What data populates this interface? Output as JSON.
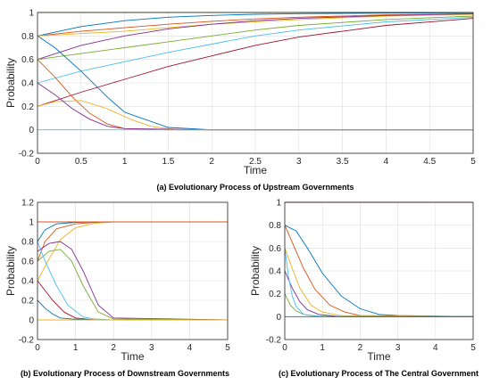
{
  "figure": {
    "panels": [
      {
        "id": "a",
        "caption": "(a) Evolutionary Process of Upstream Governments"
      },
      {
        "id": "b",
        "caption": "(b) Evolutionary Process of Downstream Governments"
      },
      {
        "id": "c",
        "caption": "(c) Evolutionary Process of The Central Government"
      }
    ]
  },
  "chart_data": [
    {
      "type": "line",
      "title": "",
      "xlabel": "Time",
      "ylabel": "Probability",
      "xlim": [
        0,
        5
      ],
      "ylim": [
        -0.2,
        1
      ],
      "xticks": [
        "0",
        "0.5",
        "1",
        "1.5",
        "2",
        "2.5",
        "3",
        "3.5",
        "4",
        "4.5",
        "5"
      ],
      "xtick_values": [
        0,
        0.5,
        1,
        1.5,
        2,
        2.5,
        3,
        3.5,
        4,
        4.5,
        5
      ],
      "yticks": [
        "-0.2",
        "0",
        "0.2",
        "0.4",
        "0.6",
        "0.8",
        "1"
      ],
      "ytick_values": [
        -0.2,
        0,
        0.2,
        0.4,
        0.6,
        0.8,
        1
      ],
      "grid": true,
      "palette": [
        "#0072BD",
        "#D95319",
        "#EDB120",
        "#7E2F8E",
        "#77AC30",
        "#4DBEEE",
        "#A2142F"
      ],
      "series": [
        {
          "x": [
            0,
            0.5,
            1,
            1.5,
            2,
            2.5,
            3,
            4,
            5
          ],
          "values": [
            0.8,
            0.88,
            0.93,
            0.96,
            0.975,
            0.985,
            0.99,
            0.995,
            0.998
          ]
        },
        {
          "x": [
            0,
            0.5,
            1,
            1.5,
            2,
            2.5,
            3,
            4,
            5
          ],
          "values": [
            0.8,
            0.84,
            0.87,
            0.9,
            0.925,
            0.945,
            0.96,
            0.98,
            0.99
          ]
        },
        {
          "x": [
            0,
            0.5,
            1,
            1.5,
            2,
            2.5,
            3,
            4,
            5
          ],
          "values": [
            0.8,
            0.82,
            0.84,
            0.87,
            0.9,
            0.92,
            0.94,
            0.97,
            0.985
          ]
        },
        {
          "x": [
            0,
            0.5,
            1,
            1.5,
            2,
            2.5,
            3,
            4,
            5
          ],
          "values": [
            0.6,
            0.72,
            0.8,
            0.86,
            0.9,
            0.93,
            0.95,
            0.975,
            0.988
          ]
        },
        {
          "x": [
            0,
            0.5,
            1,
            1.5,
            2,
            2.5,
            3,
            4,
            5
          ],
          "values": [
            0.6,
            0.65,
            0.7,
            0.75,
            0.8,
            0.85,
            0.89,
            0.94,
            0.97
          ]
        },
        {
          "x": [
            0,
            0.5,
            1,
            1.5,
            2,
            2.5,
            3,
            4,
            5
          ],
          "values": [
            0.4,
            0.5,
            0.58,
            0.66,
            0.73,
            0.8,
            0.85,
            0.92,
            0.96
          ]
        },
        {
          "x": [
            0,
            0.5,
            1,
            1.5,
            2,
            2.5,
            3,
            4,
            5
          ],
          "values": [
            0.2,
            0.32,
            0.43,
            0.54,
            0.63,
            0.72,
            0.79,
            0.89,
            0.95
          ]
        },
        {
          "x": [
            0,
            0.2,
            0.5,
            0.8,
            1,
            1.5,
            2,
            3,
            5
          ],
          "values": [
            0.8,
            0.7,
            0.5,
            0.28,
            0.15,
            0.02,
            0,
            0,
            0
          ]
        },
        {
          "x": [
            0,
            0.2,
            0.4,
            0.6,
            0.8,
            1,
            1.5,
            3,
            5
          ],
          "values": [
            0.6,
            0.45,
            0.28,
            0.14,
            0.05,
            0.01,
            0,
            0,
            0
          ]
        },
        {
          "x": [
            0,
            0.2,
            0.5,
            0.8,
            1.1,
            1.3,
            1.6,
            3,
            5
          ],
          "values": [
            0.2,
            0.24,
            0.25,
            0.18,
            0.08,
            0.03,
            0,
            0,
            0
          ]
        },
        {
          "x": [
            0,
            0.2,
            0.4,
            0.6,
            0.8,
            1,
            2,
            5
          ],
          "values": [
            0.4,
            0.3,
            0.18,
            0.09,
            0.03,
            0.01,
            0,
            0
          ]
        },
        {
          "x": [
            0,
            5
          ],
          "values": [
            1,
            1
          ]
        },
        {
          "x": [
            0,
            5
          ],
          "values": [
            0,
            0
          ]
        }
      ]
    },
    {
      "type": "line",
      "title": "",
      "xlabel": "Time",
      "ylabel": "Probability",
      "xlim": [
        0,
        5
      ],
      "ylim": [
        -0.2,
        1.2
      ],
      "xticks": [
        "0",
        "1",
        "2",
        "3",
        "4",
        "5"
      ],
      "xtick_values": [
        0,
        1,
        2,
        3,
        4,
        5
      ],
      "yticks": [
        "-0.2",
        "0",
        "0.2",
        "0.4",
        "0.6",
        "0.8",
        "1",
        "1.2"
      ],
      "ytick_values": [
        -0.2,
        0,
        0.2,
        0.4,
        0.6,
        0.8,
        1,
        1.2
      ],
      "grid": true,
      "palette": [
        "#0072BD",
        "#D95319",
        "#EDB120",
        "#7E2F8E",
        "#77AC30",
        "#4DBEEE",
        "#A2142F"
      ],
      "series": [
        {
          "x": [
            0,
            0.2,
            0.5,
            1,
            1.5,
            2,
            5
          ],
          "values": [
            0.8,
            0.92,
            0.98,
            0.995,
            1,
            1,
            1
          ]
        },
        {
          "x": [
            0,
            0.2,
            0.5,
            1,
            1.5,
            2,
            5
          ],
          "values": [
            0.6,
            0.8,
            0.93,
            0.98,
            0.995,
            1,
            1
          ]
        },
        {
          "x": [
            0,
            0.3,
            0.6,
            1,
            1.5,
            2,
            5
          ],
          "values": [
            0.4,
            0.62,
            0.82,
            0.94,
            0.985,
            1,
            1
          ]
        },
        {
          "x": [
            0,
            0.3,
            0.6,
            0.9,
            1.2,
            1.6,
            2,
            5
          ],
          "values": [
            0.7,
            0.78,
            0.8,
            0.72,
            0.5,
            0.15,
            0.02,
            0
          ]
        },
        {
          "x": [
            0,
            0.3,
            0.6,
            0.9,
            1.2,
            1.6,
            2,
            5
          ],
          "values": [
            0.6,
            0.7,
            0.72,
            0.6,
            0.35,
            0.08,
            0.01,
            0
          ]
        },
        {
          "x": [
            0,
            0.2,
            0.5,
            0.8,
            1.2,
            1.5,
            2,
            5
          ],
          "values": [
            0.8,
            0.6,
            0.35,
            0.15,
            0.03,
            0.01,
            0,
            0
          ]
        },
        {
          "x": [
            0,
            0.2,
            0.4,
            0.7,
            1,
            1.5,
            5
          ],
          "values": [
            0.4,
            0.3,
            0.2,
            0.08,
            0.02,
            0,
            0
          ]
        },
        {
          "x": [
            0,
            0.2,
            0.4,
            0.6,
            0.9,
            1.5,
            5
          ],
          "values": [
            0.2,
            0.12,
            0.06,
            0.02,
            0.01,
            0,
            0
          ]
        },
        {
          "x": [
            0,
            5
          ],
          "values": [
            1,
            1
          ]
        },
        {
          "x": [
            0,
            5
          ],
          "values": [
            0,
            0
          ]
        }
      ]
    },
    {
      "type": "line",
      "title": "",
      "xlabel": "Time",
      "ylabel": "Probability",
      "xlim": [
        0,
        5
      ],
      "ylim": [
        -0.2,
        1
      ],
      "xticks": [
        "0",
        "1",
        "2",
        "3",
        "4",
        "5"
      ],
      "xtick_values": [
        0,
        1,
        2,
        3,
        4,
        5
      ],
      "yticks": [
        "-0.2",
        "0",
        "0.2",
        "0.4",
        "0.6",
        "0.8",
        "1"
      ],
      "ytick_values": [
        -0.2,
        0,
        0.2,
        0.4,
        0.6,
        0.8,
        1
      ],
      "grid": true,
      "palette": [
        "#0072BD",
        "#D95319",
        "#EDB120",
        "#7E2F8E",
        "#77AC30",
        "#4DBEEE",
        "#A2142F"
      ],
      "series": [
        {
          "x": [
            0,
            0.3,
            0.6,
            1,
            1.5,
            2,
            2.5,
            3,
            5
          ],
          "values": [
            0.8,
            0.75,
            0.6,
            0.38,
            0.18,
            0.07,
            0.02,
            0.01,
            0
          ]
        },
        {
          "x": [
            0,
            0.2,
            0.5,
            0.8,
            1.2,
            1.6,
            2,
            5
          ],
          "values": [
            0.8,
            0.65,
            0.42,
            0.24,
            0.1,
            0.04,
            0.01,
            0
          ]
        },
        {
          "x": [
            0,
            0.2,
            0.4,
            0.7,
            1,
            1.5,
            5
          ],
          "values": [
            0.6,
            0.42,
            0.25,
            0.1,
            0.04,
            0.01,
            0
          ]
        },
        {
          "x": [
            0,
            0.2,
            0.4,
            0.6,
            0.9,
            1.5,
            5
          ],
          "values": [
            0.4,
            0.25,
            0.13,
            0.06,
            0.02,
            0,
            0
          ]
        },
        {
          "x": [
            0,
            0.15,
            0.3,
            0.5,
            0.8,
            1.5,
            5
          ],
          "values": [
            0.2,
            0.1,
            0.05,
            0.02,
            0.005,
            0,
            0
          ]
        },
        {
          "x": [
            0,
            0.1,
            0.2,
            0.3,
            0.5,
            1,
            5
          ],
          "values": [
            0.6,
            0.35,
            0.18,
            0.09,
            0.02,
            0,
            0
          ]
        },
        {
          "x": [
            0,
            5
          ],
          "values": [
            1,
            1
          ]
        },
        {
          "x": [
            0,
            5
          ],
          "values": [
            0,
            0
          ]
        }
      ]
    }
  ]
}
